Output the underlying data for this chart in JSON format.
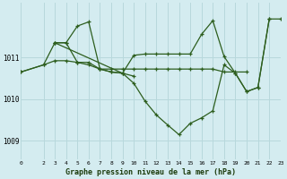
{
  "title": "Graphe pression niveau de la mer (hPa)",
  "bg_color": "#d4ecf0",
  "grid_color": "#b8d8dc",
  "line_color": "#2d5e1e",
  "xlim": [
    0,
    23
  ],
  "ylim": [
    1008.55,
    1012.3
  ],
  "xticks": [
    0,
    2,
    3,
    4,
    5,
    6,
    7,
    8,
    9,
    10,
    11,
    12,
    13,
    14,
    15,
    16,
    17,
    18,
    19,
    20,
    21,
    22,
    23
  ],
  "yticks": [
    1009,
    1010,
    1011
  ],
  "series1": [
    [
      0,
      1010.65
    ],
    [
      2,
      1010.82
    ],
    [
      3,
      1010.92
    ],
    [
      4,
      1010.92
    ],
    [
      5,
      1010.88
    ],
    [
      6,
      1010.88
    ],
    [
      7,
      1010.72
    ],
    [
      8,
      1010.72
    ],
    [
      9,
      1010.72
    ],
    [
      10,
      1010.72
    ],
    [
      11,
      1010.72
    ],
    [
      12,
      1010.72
    ],
    [
      13,
      1010.72
    ],
    [
      14,
      1010.72
    ],
    [
      15,
      1010.72
    ],
    [
      16,
      1010.72
    ],
    [
      17,
      1010.72
    ],
    [
      18,
      1010.65
    ],
    [
      19,
      1010.65
    ],
    [
      20,
      1010.65
    ]
  ],
  "series2": [
    [
      0,
      1010.65
    ],
    [
      2,
      1010.82
    ],
    [
      3,
      1011.35
    ],
    [
      4,
      1011.35
    ],
    [
      5,
      1010.88
    ],
    [
      6,
      1010.82
    ],
    [
      7,
      1010.72
    ],
    [
      8,
      1010.65
    ],
    [
      9,
      1010.62
    ],
    [
      10,
      1010.38
    ],
    [
      11,
      1009.95
    ],
    [
      12,
      1009.62
    ],
    [
      13,
      1009.38
    ],
    [
      14,
      1009.15
    ],
    [
      15,
      1009.42
    ],
    [
      16,
      1009.55
    ],
    [
      17,
      1009.72
    ],
    [
      18,
      1010.82
    ],
    [
      19,
      1010.62
    ],
    [
      20,
      1010.18
    ],
    [
      21,
      1010.28
    ],
    [
      22,
      1011.92
    ]
  ],
  "series3": [
    [
      3,
      1011.35
    ],
    [
      4,
      1011.35
    ],
    [
      5,
      1011.75
    ],
    [
      6,
      1011.85
    ],
    [
      7,
      1010.72
    ],
    [
      8,
      1010.65
    ],
    [
      9,
      1010.62
    ],
    [
      10,
      1010.55
    ]
  ],
  "series4": [
    [
      3,
      1011.35
    ],
    [
      9,
      1010.62
    ],
    [
      10,
      1011.05
    ],
    [
      11,
      1011.08
    ],
    [
      12,
      1011.08
    ],
    [
      13,
      1011.08
    ],
    [
      14,
      1011.08
    ],
    [
      15,
      1011.08
    ],
    [
      16,
      1011.55
    ],
    [
      17,
      1011.88
    ],
    [
      18,
      1011.02
    ],
    [
      19,
      1010.62
    ],
    [
      20,
      1010.18
    ],
    [
      21,
      1010.28
    ],
    [
      22,
      1011.92
    ],
    [
      23,
      1011.92
    ]
  ]
}
